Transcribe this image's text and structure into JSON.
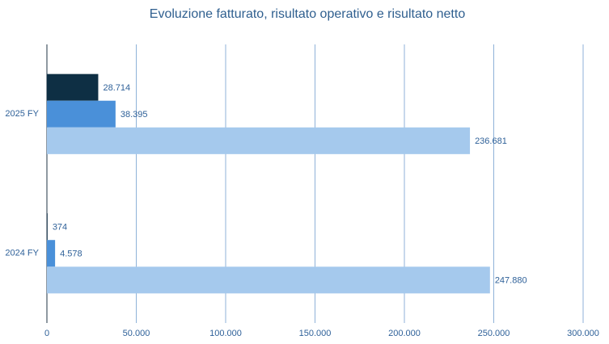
{
  "chart_data": {
    "type": "hbar",
    "title": "Evoluzione fatturato, risultato operativo e risultato netto",
    "categories": [
      "2024 FY",
      "2025 FY"
    ],
    "series": [
      {
        "color": "#0e2f44",
        "values": [
          374,
          28714
        ],
        "value_labels": [
          "374",
          "28.714"
        ]
      },
      {
        "color": "#4a90d9",
        "values": [
          4578,
          38395
        ],
        "value_labels": [
          "4.578",
          "38.395"
        ]
      },
      {
        "color": "#a5c9ed",
        "values": [
          247880,
          236681
        ],
        "value_labels": [
          "247.880",
          "236.681"
        ]
      }
    ],
    "xlim": [
      0,
      300000
    ],
    "xticks": [
      0,
      {
        "value": 50000,
        "label": "50.000"
      },
      {
        "value": 100000,
        "label": "100.000"
      },
      {
        "value": 150000,
        "label": "150.000"
      },
      {
        "value": 200000,
        "label": "200.000"
      },
      {
        "value": 250000,
        "label": "250.000"
      },
      {
        "value": 300000,
        "label": "300.000"
      }
    ],
    "grid": true
  }
}
